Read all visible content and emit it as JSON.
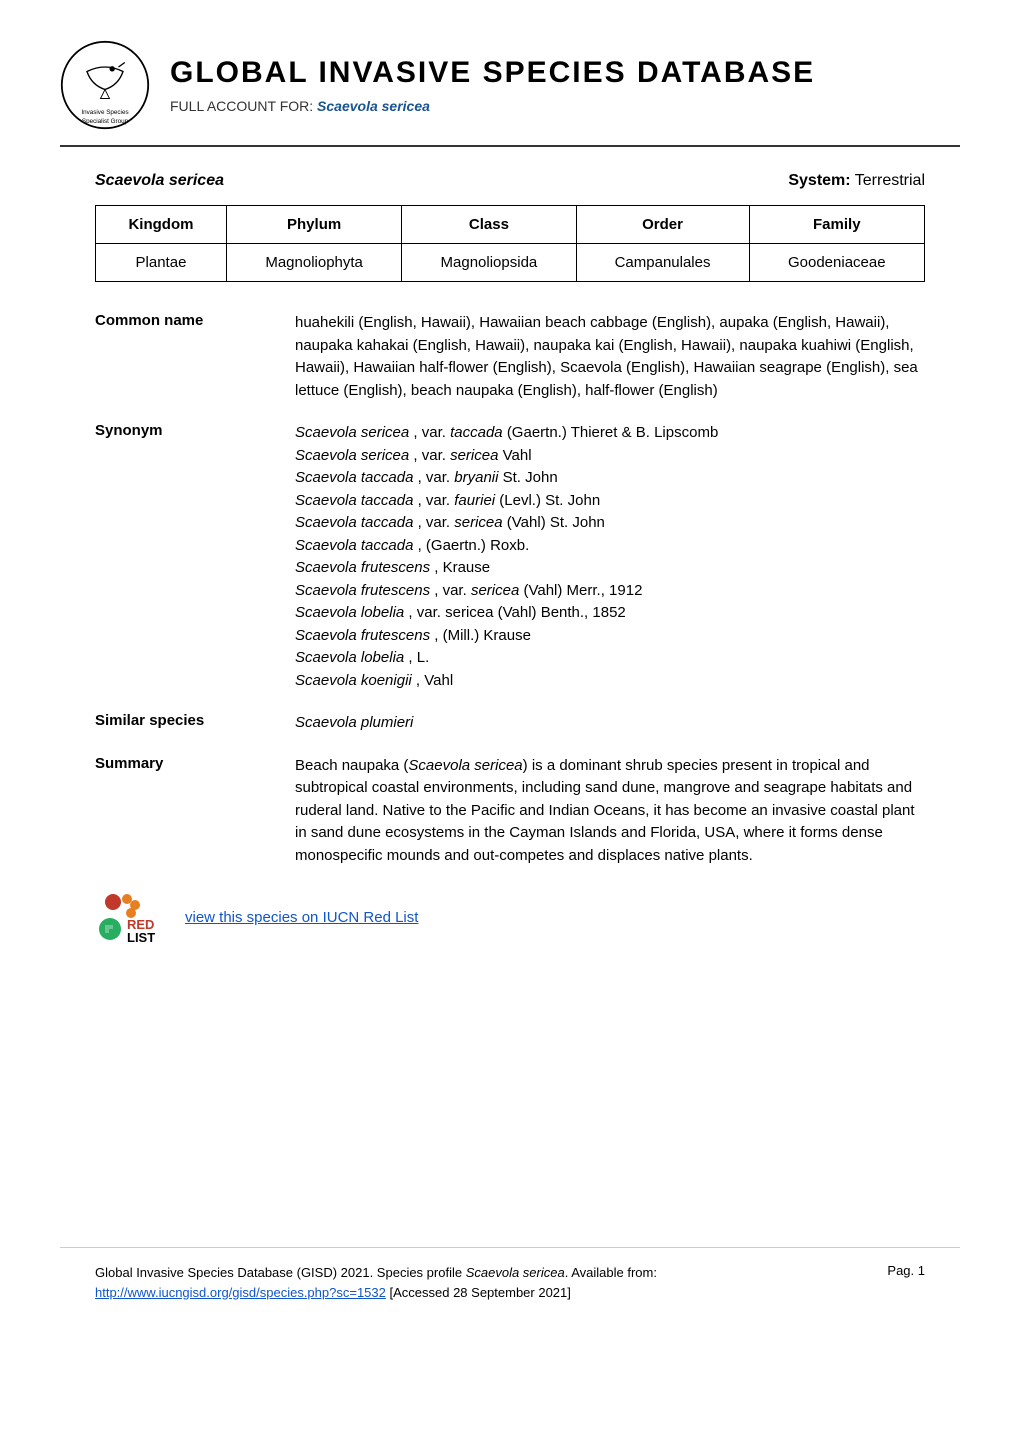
{
  "header": {
    "main_title": "GLOBAL INVASIVE SPECIES DATABASE",
    "subtitle_prefix": "FULL ACCOUNT FOR: ",
    "subtitle_species": "Scaevola sericea",
    "logo_text_top": "Invasive Species",
    "logo_text_bottom": "Specialist Group"
  },
  "species_row": {
    "species_name": "Scaevola sericea",
    "system_label": "System:",
    "system_value": "Terrestrial"
  },
  "tax_table": {
    "headers": [
      "Kingdom",
      "Phylum",
      "Class",
      "Order",
      "Family"
    ],
    "row": [
      "Plantae",
      "Magnoliophyta",
      "Magnoliopsida",
      "Campanulales",
      "Goodeniaceae"
    ]
  },
  "common_name": {
    "label": "Common name",
    "content": "huahekili (English, Hawaii), Hawaiian beach cabbage (English), aupaka (English, Hawaii), naupaka kahakai (English, Hawaii), naupaka kai (English, Hawaii), naupaka kuahiwi (English, Hawaii), Hawaiian half-flower (English), Scaevola (English), Hawaiian seagrape (English), sea lettuce (English), beach naupaka (English), half-flower (English)"
  },
  "synonym": {
    "label": "Synonym",
    "lines": [
      {
        "italic": "Scaevola sericea ",
        "plain": ", var. ",
        "italic2": "taccada ",
        "plain2": "(Gaertn.) Thieret & B. Lipscomb"
      },
      {
        "italic": "Scaevola sericea ",
        "plain": ", var. ",
        "italic2": "sericea ",
        "plain2": "Vahl"
      },
      {
        "italic": "Scaevola taccada ",
        "plain": ", var. ",
        "italic2": "bryanii ",
        "plain2": "St. John"
      },
      {
        "italic": "Scaevola taccada ",
        "plain": ", var. ",
        "italic2": "fauriei ",
        "plain2": "(Levl.) St. John"
      },
      {
        "italic": "Scaevola taccada ",
        "plain": ", var. ",
        "italic2": "sericea ",
        "plain2": "(Vahl) St. John"
      },
      {
        "italic": "Scaevola taccada ",
        "plain": ", (Gaertn.) Roxb.",
        "italic2": "",
        "plain2": ""
      },
      {
        "italic": "Scaevola frutescens ",
        "plain": ", Krause",
        "italic2": "",
        "plain2": ""
      },
      {
        "italic": "Scaevola frutescens ",
        "plain": ", var. ",
        "italic2": "sericea ",
        "plain2": "(Vahl) Merr., 1912"
      },
      {
        "italic": "Scaevola lobelia ",
        "plain": ", var. sericea (Vahl) Benth., 1852",
        "italic2": "",
        "plain2": ""
      },
      {
        "italic": "Scaevola frutescens ",
        "plain": ", (Mill.) Krause",
        "italic2": "",
        "plain2": ""
      },
      {
        "italic": "Scaevola lobelia ",
        "plain": ", L.",
        "italic2": "",
        "plain2": ""
      },
      {
        "italic": "Scaevola koenigii ",
        "plain": ", Vahl",
        "italic2": "",
        "plain2": ""
      }
    ]
  },
  "similar_species": {
    "label": "Similar species",
    "content": "Scaevola plumieri"
  },
  "summary": {
    "label": "Summary",
    "prefix": "Beach naupaka (",
    "italic_part": "Scaevola sericea",
    "suffix": ") is a dominant shrub species present in tropical and subtropical coastal environments, including sand dune, mangrove and seagrape habitats and ruderal land. Native to the Pacific and Indian Oceans, it has become an invasive coastal plant in sand dune ecosystems in the Cayman Islands and Florida, USA, where it forms dense monospecific mounds and out-competes and displaces native plants."
  },
  "redlist": {
    "link_text": "view this species on IUCN Red List"
  },
  "footer": {
    "citation_prefix": "Global Invasive Species Database (GISD) 2021. Species profile ",
    "citation_species": "Scaevola sericea",
    "citation_mid": ". Available from: ",
    "citation_url": "http://www.iucngisd.org/gisd/species.php?sc=1532",
    "citation_suffix": " [Accessed 28 September 2021]",
    "page_num": "Pag. 1"
  },
  "colors": {
    "link_color": "#1155cc",
    "species_blue": "#1a5490",
    "border_color": "#333333"
  }
}
